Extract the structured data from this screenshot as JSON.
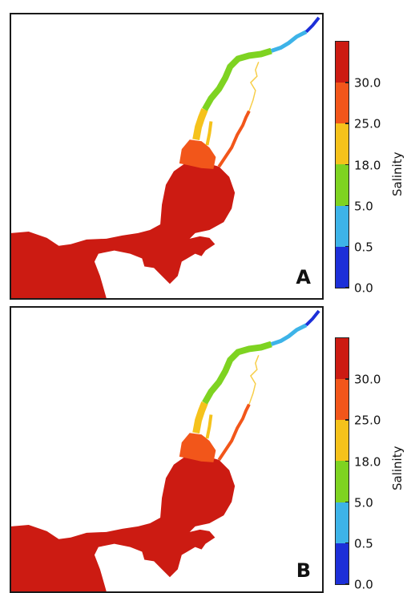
{
  "colorbar": {
    "title": "Salinity",
    "ticks": [
      "0.0",
      "0.5",
      "5.0",
      "18.0",
      "25.0",
      "30.0"
    ],
    "colors": [
      "#1c2fd8",
      "#3db3e8",
      "#7ed321",
      "#f5c21b",
      "#f2561a",
      "#cc1b12"
    ]
  },
  "panels": [
    {
      "letter": "A"
    },
    {
      "letter": "B"
    }
  ]
}
